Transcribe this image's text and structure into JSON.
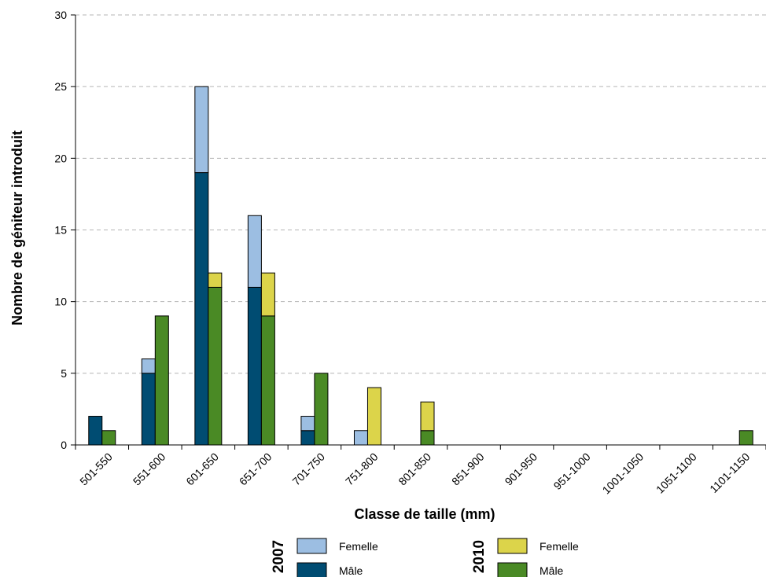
{
  "chart_data": {
    "type": "bar",
    "title": "",
    "xlabel": "Classe de taille (mm)",
    "ylabel": "Nombre de géniteur introduit",
    "ylim": [
      0,
      30
    ],
    "yticks": [
      "0",
      "5",
      "10",
      "15",
      "20",
      "25",
      "30"
    ],
    "grid": true,
    "legend_position": "bottom",
    "categories": [
      "501-550",
      "551-600",
      "601-650",
      "651-700",
      "701-750",
      "751-800",
      "801-850",
      "851-900",
      "901-950",
      "951-1000",
      "1001-1050",
      "1051-1100",
      "1101-1150"
    ],
    "groups": [
      {
        "name": "2007",
        "stack": [
          {
            "name": "Mâle",
            "color": "#004c72",
            "values": [
              2,
              5,
              19,
              11,
              1,
              0,
              0,
              0,
              0,
              0,
              0,
              0,
              0
            ]
          },
          {
            "name": "Femelle",
            "color": "#9cbee2",
            "values": [
              0,
              1,
              6,
              5,
              1,
              1,
              0,
              0,
              0,
              0,
              0,
              0,
              0
            ]
          }
        ]
      },
      {
        "name": "2010",
        "stack": [
          {
            "name": "Mâle",
            "color": "#4a8a25",
            "values": [
              1,
              9,
              11,
              9,
              5,
              0,
              1,
              0,
              0,
              0,
              0,
              0,
              1
            ]
          },
          {
            "name": "Femelle",
            "color": "#dcd44a",
            "values": [
              0,
              0,
              1,
              3,
              0,
              4,
              2,
              0,
              0,
              0,
              0,
              0,
              0
            ]
          }
        ]
      }
    ]
  },
  "legend": {
    "groups": [
      {
        "year": "2007",
        "items": [
          {
            "label": "Femelle",
            "color": "#9cbee2"
          },
          {
            "label": "Mâle",
            "color": "#004c72"
          }
        ]
      },
      {
        "year": "2010",
        "items": [
          {
            "label": "Femelle",
            "color": "#dcd44a"
          },
          {
            "label": "Mâle",
            "color": "#4a8a25"
          }
        ]
      }
    ]
  }
}
